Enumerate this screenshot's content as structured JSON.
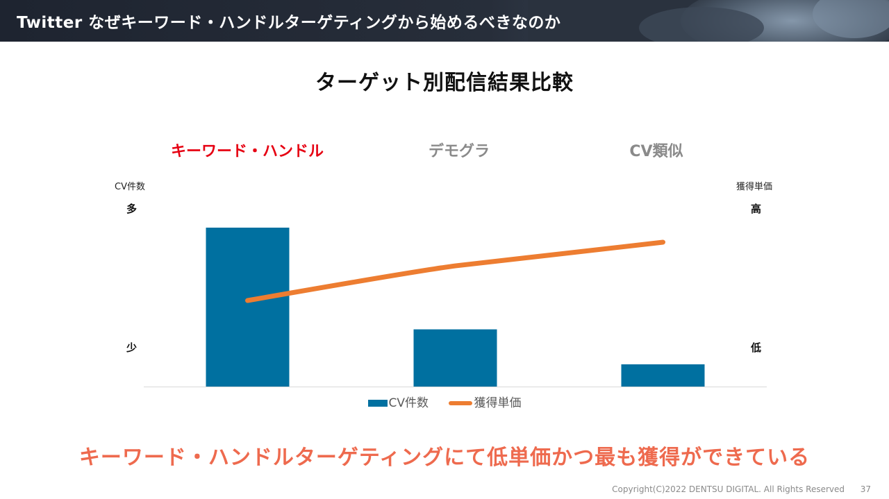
{
  "header": {
    "title": "Twitter なぜキーワード・ハンドルターゲティングから始めるべきなのか"
  },
  "chart_data": {
    "type": "bar",
    "title": "ターゲット別配信結果比較",
    "categories": [
      "キーワード・ハンドル",
      "デモグラ",
      "CV類似"
    ],
    "highlight_category": "キーワード・ハンドル",
    "left_axis": {
      "label": "CV件数",
      "top": "多",
      "bottom": "少"
    },
    "right_axis": {
      "label": "獲得単価",
      "top": "高",
      "bottom": "低"
    },
    "ylim": [
      0,
      100
    ],
    "series": [
      {
        "name": "CV件数",
        "type": "bar",
        "color": "#0070a0",
        "values": [
          100,
          36,
          14
        ]
      },
      {
        "name": "獲得単価",
        "type": "line",
        "color": "#ed7d31",
        "values": [
          54,
          76,
          91
        ]
      }
    ],
    "legend_position": "bottom",
    "grid": false
  },
  "conclusion": "キーワード・ハンドルターゲティングにて低単価かつ最も獲得ができている",
  "footer": {
    "copyright": "Copyright(C)2022 DENTSU DIGITAL. All Rights Reserved",
    "page_number": "37"
  },
  "colors": {
    "highlight": "#e60012",
    "category": "#8a8a8a",
    "conclusion": "#ee6a4e"
  }
}
